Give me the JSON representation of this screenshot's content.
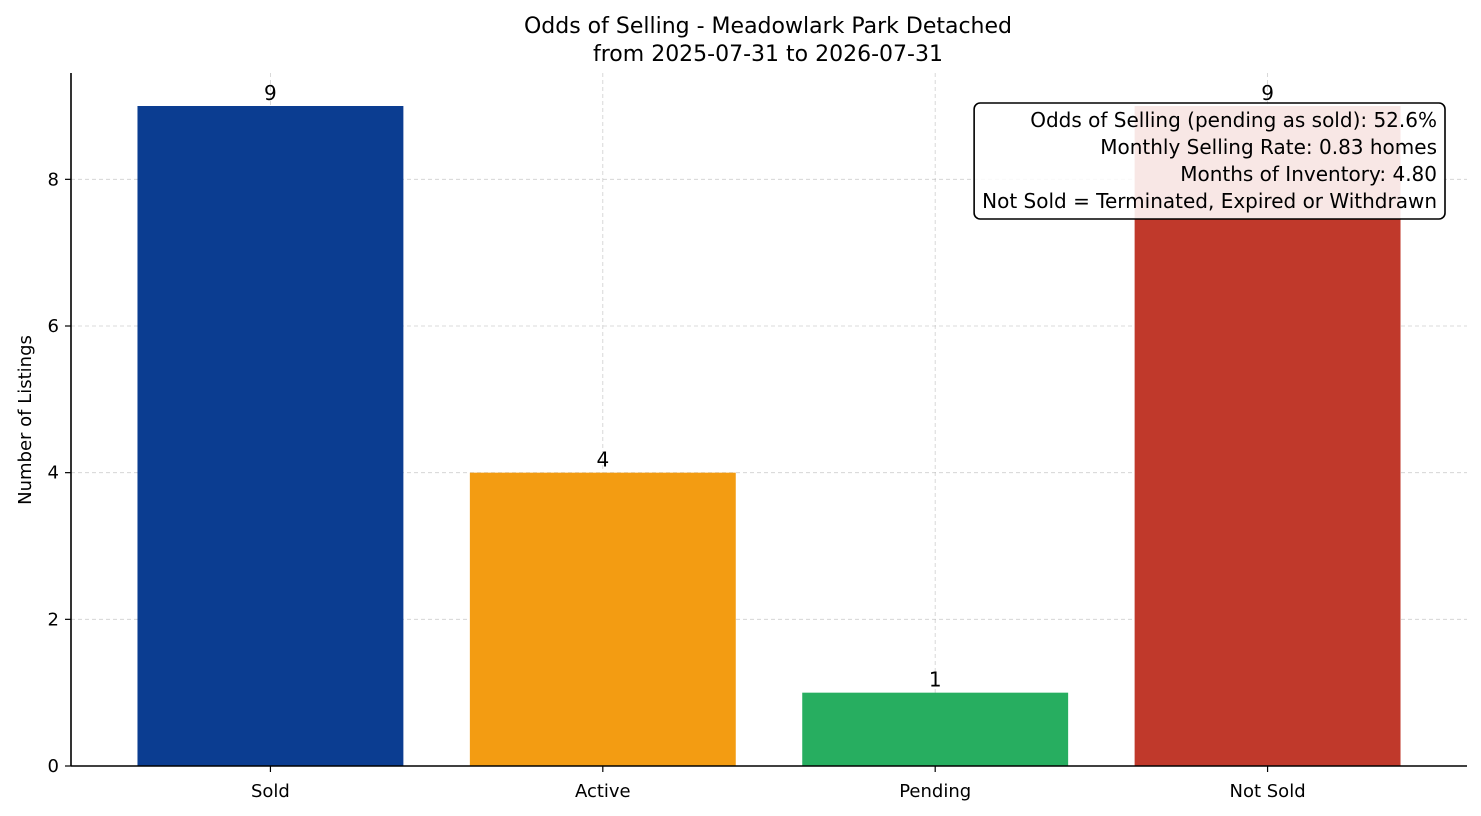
{
  "chart_data": {
    "type": "bar",
    "title": "Odds of Selling - Meadowlark Park Detached",
    "subtitle": "from 2025-07-31 to 2026-07-31",
    "xlabel": "",
    "ylabel": "Number of Listings",
    "categories": [
      "Sold",
      "Active",
      "Pending",
      "Not Sold"
    ],
    "values": [
      9,
      4,
      1,
      9
    ],
    "data_labels": [
      "9",
      "4",
      "1",
      "9"
    ],
    "colors": [
      "#0b3d91",
      "#f39c12",
      "#27ae60",
      "#c0392b"
    ],
    "ylim": [
      0,
      9.45
    ],
    "yticks": [
      0,
      2,
      4,
      6,
      8
    ],
    "ytick_labels": [
      "0",
      "2",
      "4",
      "6",
      "8"
    ],
    "grid": true,
    "info_box": {
      "position": "top-right",
      "lines": [
        "Odds of Selling (pending as sold): 52.6%",
        "Monthly Selling Rate: 0.83 homes",
        "Months of Inventory: 4.80",
        "Not Sold = Terminated, Expired or Withdrawn"
      ]
    }
  }
}
